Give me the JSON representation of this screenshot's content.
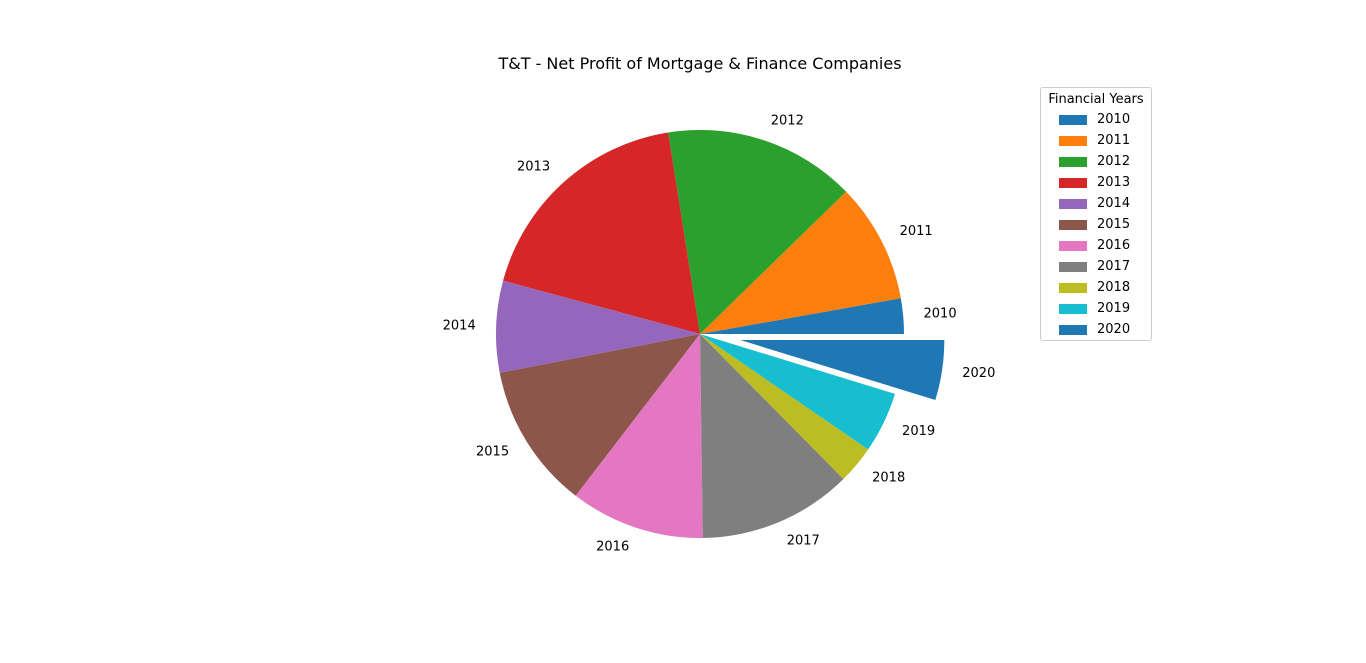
{
  "chart_data": {
    "type": "pie",
    "title": "T&T - Net Profit of Mortgage & Finance Companies",
    "legend_title": "Financial Years",
    "legend_position": "right",
    "categories": [
      "2010",
      "2011",
      "2012",
      "2013",
      "2014",
      "2015",
      "2016",
      "2017",
      "2018",
      "2019",
      "2020"
    ],
    "values": [
      2.9,
      9.8,
      15.7,
      18.9,
      7.5,
      11.9,
      11.0,
      12.6,
      3.1,
      5.0,
      4.9
    ],
    "colors": [
      "#1f77b4",
      "#ff7f0e",
      "#2ca02c",
      "#d62728",
      "#9467bd",
      "#8c564b",
      "#e377c2",
      "#7f7f7f",
      "#bcbd22",
      "#17becf",
      "#1f77b4"
    ],
    "explode": [
      0,
      0,
      0,
      0,
      0,
      0,
      0,
      0,
      0,
      0,
      0.2
    ],
    "start_angle_deg": 0,
    "direction": "counterclockwise"
  }
}
